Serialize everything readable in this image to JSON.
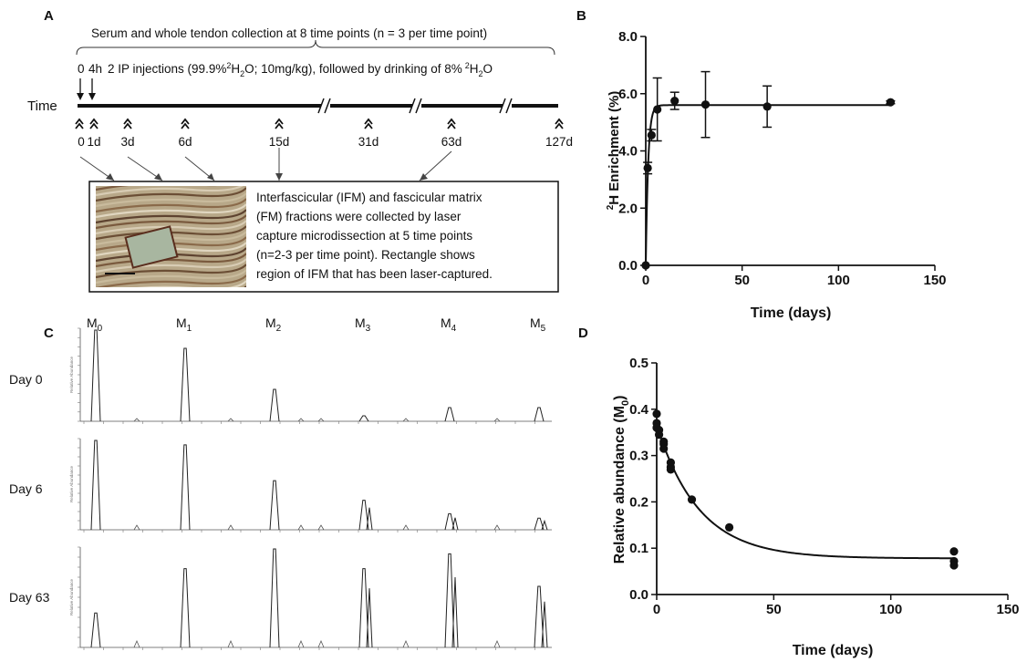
{
  "panelA": {
    "letter": "A",
    "collection_text": "Serum and whole tendon collection at 8 time points (n = 3 per time point)",
    "inj_0": "0",
    "inj_4h": "4h",
    "injection_pre": "2 IP injections (99.9%",
    "injection_sup": "2",
    "injection_mid": "H",
    "injection_sub": "2",
    "injection_post": "O;  10mg/kg), followed by drinking of 8%",
    "injection_sup2": "2",
    "injection_mid2": "H",
    "injection_sub2": "2",
    "injection_end": "O",
    "time_label": "Time",
    "timepoints": [
      "0",
      "1d",
      "3d",
      "6d",
      "15d",
      "31d",
      "63d",
      "127d"
    ],
    "box_text": [
      "Interfascicular (IFM) and fascicular matrix",
      "(FM) fractions were collected by laser",
      "capture microdissection at 5 time points",
      "(n=2-3 per time point). Rectangle shows",
      "region of IFM that has been laser-captured."
    ]
  },
  "panelB": {
    "letter": "B",
    "ylabel_sup": "2",
    "ylabel_main": "H Enrichment  (%)",
    "xlabel": "Time (days)",
    "xticks": [
      "0",
      "50",
      "100",
      "150"
    ],
    "yticks": [
      "0.0",
      "2.0",
      "4.0",
      "6.0",
      "8.0"
    ]
  },
  "panelC": {
    "letter": "C",
    "mass_labels": [
      "M",
      "M",
      "M",
      "M",
      "M",
      "M"
    ],
    "mass_subs": [
      "0",
      "1",
      "2",
      "3",
      "4",
      "5"
    ],
    "row_labels": [
      "Day 0",
      "Day 6",
      "Day 63"
    ]
  },
  "panelD": {
    "letter": "D",
    "ylabel": "Relative abundance (M",
    "ylabel_sub": "0",
    "ylabel_close": ")",
    "xlabel": "Time (days)",
    "xticks": [
      "0",
      "50",
      "100",
      "150"
    ],
    "yticks": [
      "0.0",
      "0.1",
      "0.2",
      "0.3",
      "0.4",
      "0.5"
    ]
  },
  "chart_data": [
    {
      "type": "scatter",
      "panel": "B",
      "xlim": [
        0,
        150
      ],
      "ylim": [
        0,
        8
      ],
      "xlabel": "Time (days)",
      "ylabel": "2H Enrichment (%)",
      "x": [
        0,
        1,
        3,
        6,
        15,
        31,
        63,
        127
      ],
      "y": [
        0.0,
        3.4,
        4.55,
        5.45,
        5.75,
        5.62,
        5.55,
        5.7
      ],
      "err": [
        0.0,
        0.2,
        0.2,
        1.1,
        0.3,
        1.15,
        0.72,
        0.05
      ],
      "fit_plateau": 5.6,
      "fit_rate": 0.8
    },
    {
      "type": "scatter",
      "panel": "D",
      "xlim": [
        0,
        150
      ],
      "ylim": [
        0,
        0.5
      ],
      "xlabel": "Time (days)",
      "ylabel": "Relative abundance (M0)",
      "x": [
        0,
        0,
        0,
        1,
        1,
        3,
        3,
        3,
        6,
        6,
        6,
        15,
        31,
        127,
        127,
        127
      ],
      "y": [
        0.39,
        0.37,
        0.36,
        0.355,
        0.345,
        0.33,
        0.325,
        0.315,
        0.285,
        0.275,
        0.27,
        0.205,
        0.145,
        0.093,
        0.072,
        0.063
      ],
      "fit_y0": 0.365,
      "fit_plateau": 0.078,
      "fit_rate": 0.055
    },
    {
      "type": "line",
      "panel": "C",
      "rows": [
        "Day 0",
        "Day 6",
        "Day 63"
      ],
      "peaks": [
        "M0",
        "M1",
        "M2",
        "M3",
        "M4",
        "M5"
      ],
      "relative_heights": [
        [
          1.0,
          0.8,
          0.35,
          0.06,
          0.15,
          0.15
        ],
        [
          1.0,
          0.95,
          0.55,
          0.33,
          0.18,
          0.13
        ],
        [
          0.35,
          0.8,
          1.0,
          0.8,
          0.95,
          0.62
        ]
      ]
    }
  ]
}
